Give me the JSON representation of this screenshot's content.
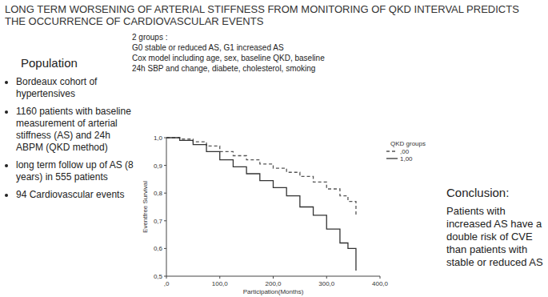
{
  "title": "LONG TERM WORSENING OF ARTERIAL STIFFNESS FROM MONITORING OF QKD INTERVAL PREDICTS THE OCCURRENCE OF CARDIOVASCULAR EVENTS",
  "population": {
    "heading": "Population",
    "items": [
      "Bordeaux cohort of hypertensives",
      "1160 patients with baseline measurement of arterial stiffness (AS) and 24h ABPM (QKD method)",
      "long term follow up of AS (8 years) in 555 patients",
      "94 Cardiovascular events"
    ]
  },
  "methods": [
    "2 groups :",
    "G0 stable or reduced AS, G1 increased AS",
    "Cox model including age, sex, baseline QKD, baseline",
    "24h SBP and change, diabete, cholesterol, smoking"
  ],
  "conclusion": {
    "heading": "Conclusion:",
    "text": "Patients with increased AS have a double risk of CVE than patients with stable or reduced AS"
  },
  "chart_data": {
    "type": "step",
    "x_label": "Participation(Months)",
    "y_label": "Eventfree Survival",
    "legend_title": "QKD groups",
    "legend": "top-right",
    "x": [
      0,
      25,
      50,
      75,
      100,
      125,
      150,
      175,
      200,
      225,
      250,
      275,
      300,
      325,
      340,
      355
    ],
    "series": [
      {
        "name": ",00",
        "color": "#555555",
        "line_style": "dashed",
        "values": [
          1.0,
          0.995,
          0.985,
          0.97,
          0.95,
          0.935,
          0.92,
          0.905,
          0.89,
          0.875,
          0.86,
          0.84,
          0.815,
          0.79,
          0.77,
          0.72
        ]
      },
      {
        "name": "1,00",
        "color": "#333333",
        "line_style": "solid",
        "values": [
          1.0,
          0.99,
          0.975,
          0.95,
          0.92,
          0.895,
          0.87,
          0.845,
          0.82,
          0.79,
          0.75,
          0.72,
          0.67,
          0.62,
          0.6,
          0.52
        ]
      }
    ],
    "xlim": [
      0,
      400
    ],
    "xticks": [
      {
        "value": 0,
        "label": ",0"
      },
      {
        "value": 100,
        "label": "100,0"
      },
      {
        "value": 200,
        "label": "200,0"
      },
      {
        "value": 300,
        "label": "300,0"
      },
      {
        "value": 400,
        "label": "400,0"
      }
    ],
    "ylim": [
      0.5,
      1.0
    ],
    "yticks": [
      {
        "value": 0.5,
        "label": "0,5"
      },
      {
        "value": 0.6,
        "label": "0,6"
      },
      {
        "value": 0.7,
        "label": "0,7"
      },
      {
        "value": 0.8,
        "label": "0,8"
      },
      {
        "value": 0.9,
        "label": "0,9"
      },
      {
        "value": 1.0,
        "label": "1,0"
      }
    ],
    "grid": false
  }
}
